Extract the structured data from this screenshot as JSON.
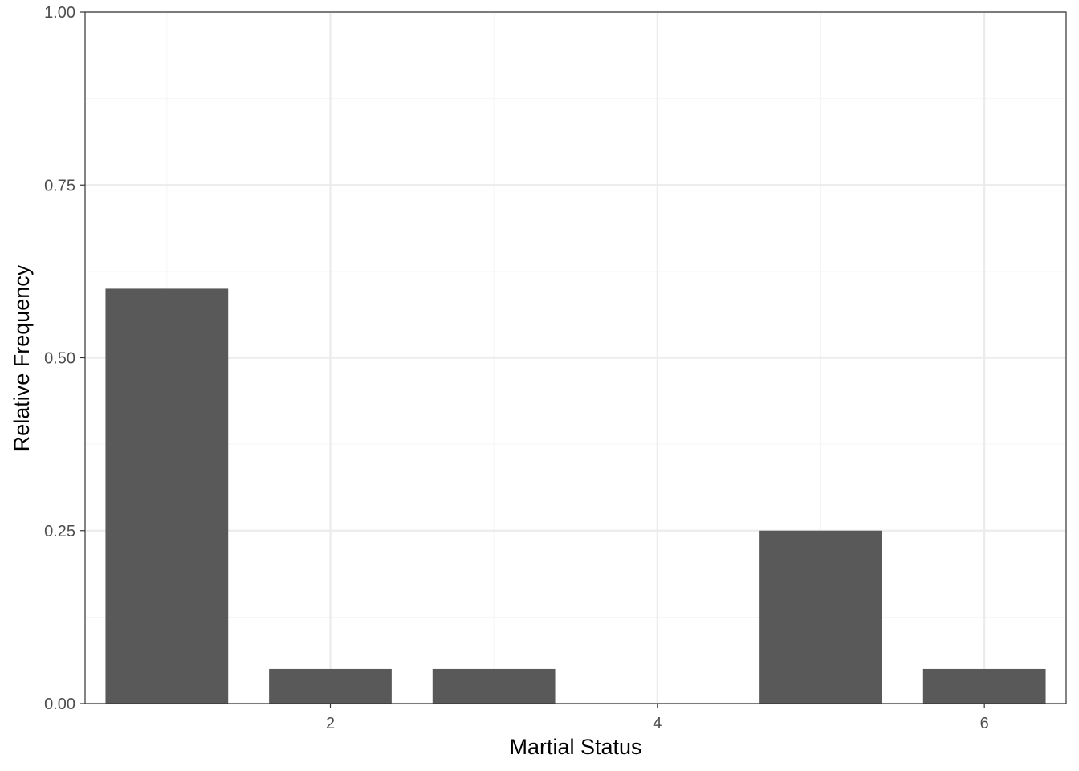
{
  "chart_data": {
    "type": "bar",
    "x": [
      1,
      2,
      3,
      4,
      5,
      6
    ],
    "values": [
      0.6,
      0.05,
      0.05,
      0,
      0.25,
      0.05
    ],
    "title": "",
    "xlabel": "Martial Status",
    "ylabel": "Relative Frequency",
    "xlim": [
      0.5,
      6.5
    ],
    "ylim": [
      0,
      1
    ],
    "x_ticks": [
      2,
      4,
      6
    ],
    "x_tick_labels": [
      "2",
      "4",
      "6"
    ],
    "y_ticks": [
      0,
      0.25,
      0.5,
      0.75,
      1
    ],
    "y_tick_labels": [
      "0.00",
      "0.25",
      "0.50",
      "0.75",
      "1.00"
    ],
    "grid": true,
    "legend": "none",
    "colors": {
      "bar": "#595959",
      "grid_major": "#ebebeb",
      "grid_minor": "#f5f5f5",
      "panel_border": "#333333",
      "tick_label": "#4d4d4d",
      "axis_title": "#000000"
    }
  }
}
